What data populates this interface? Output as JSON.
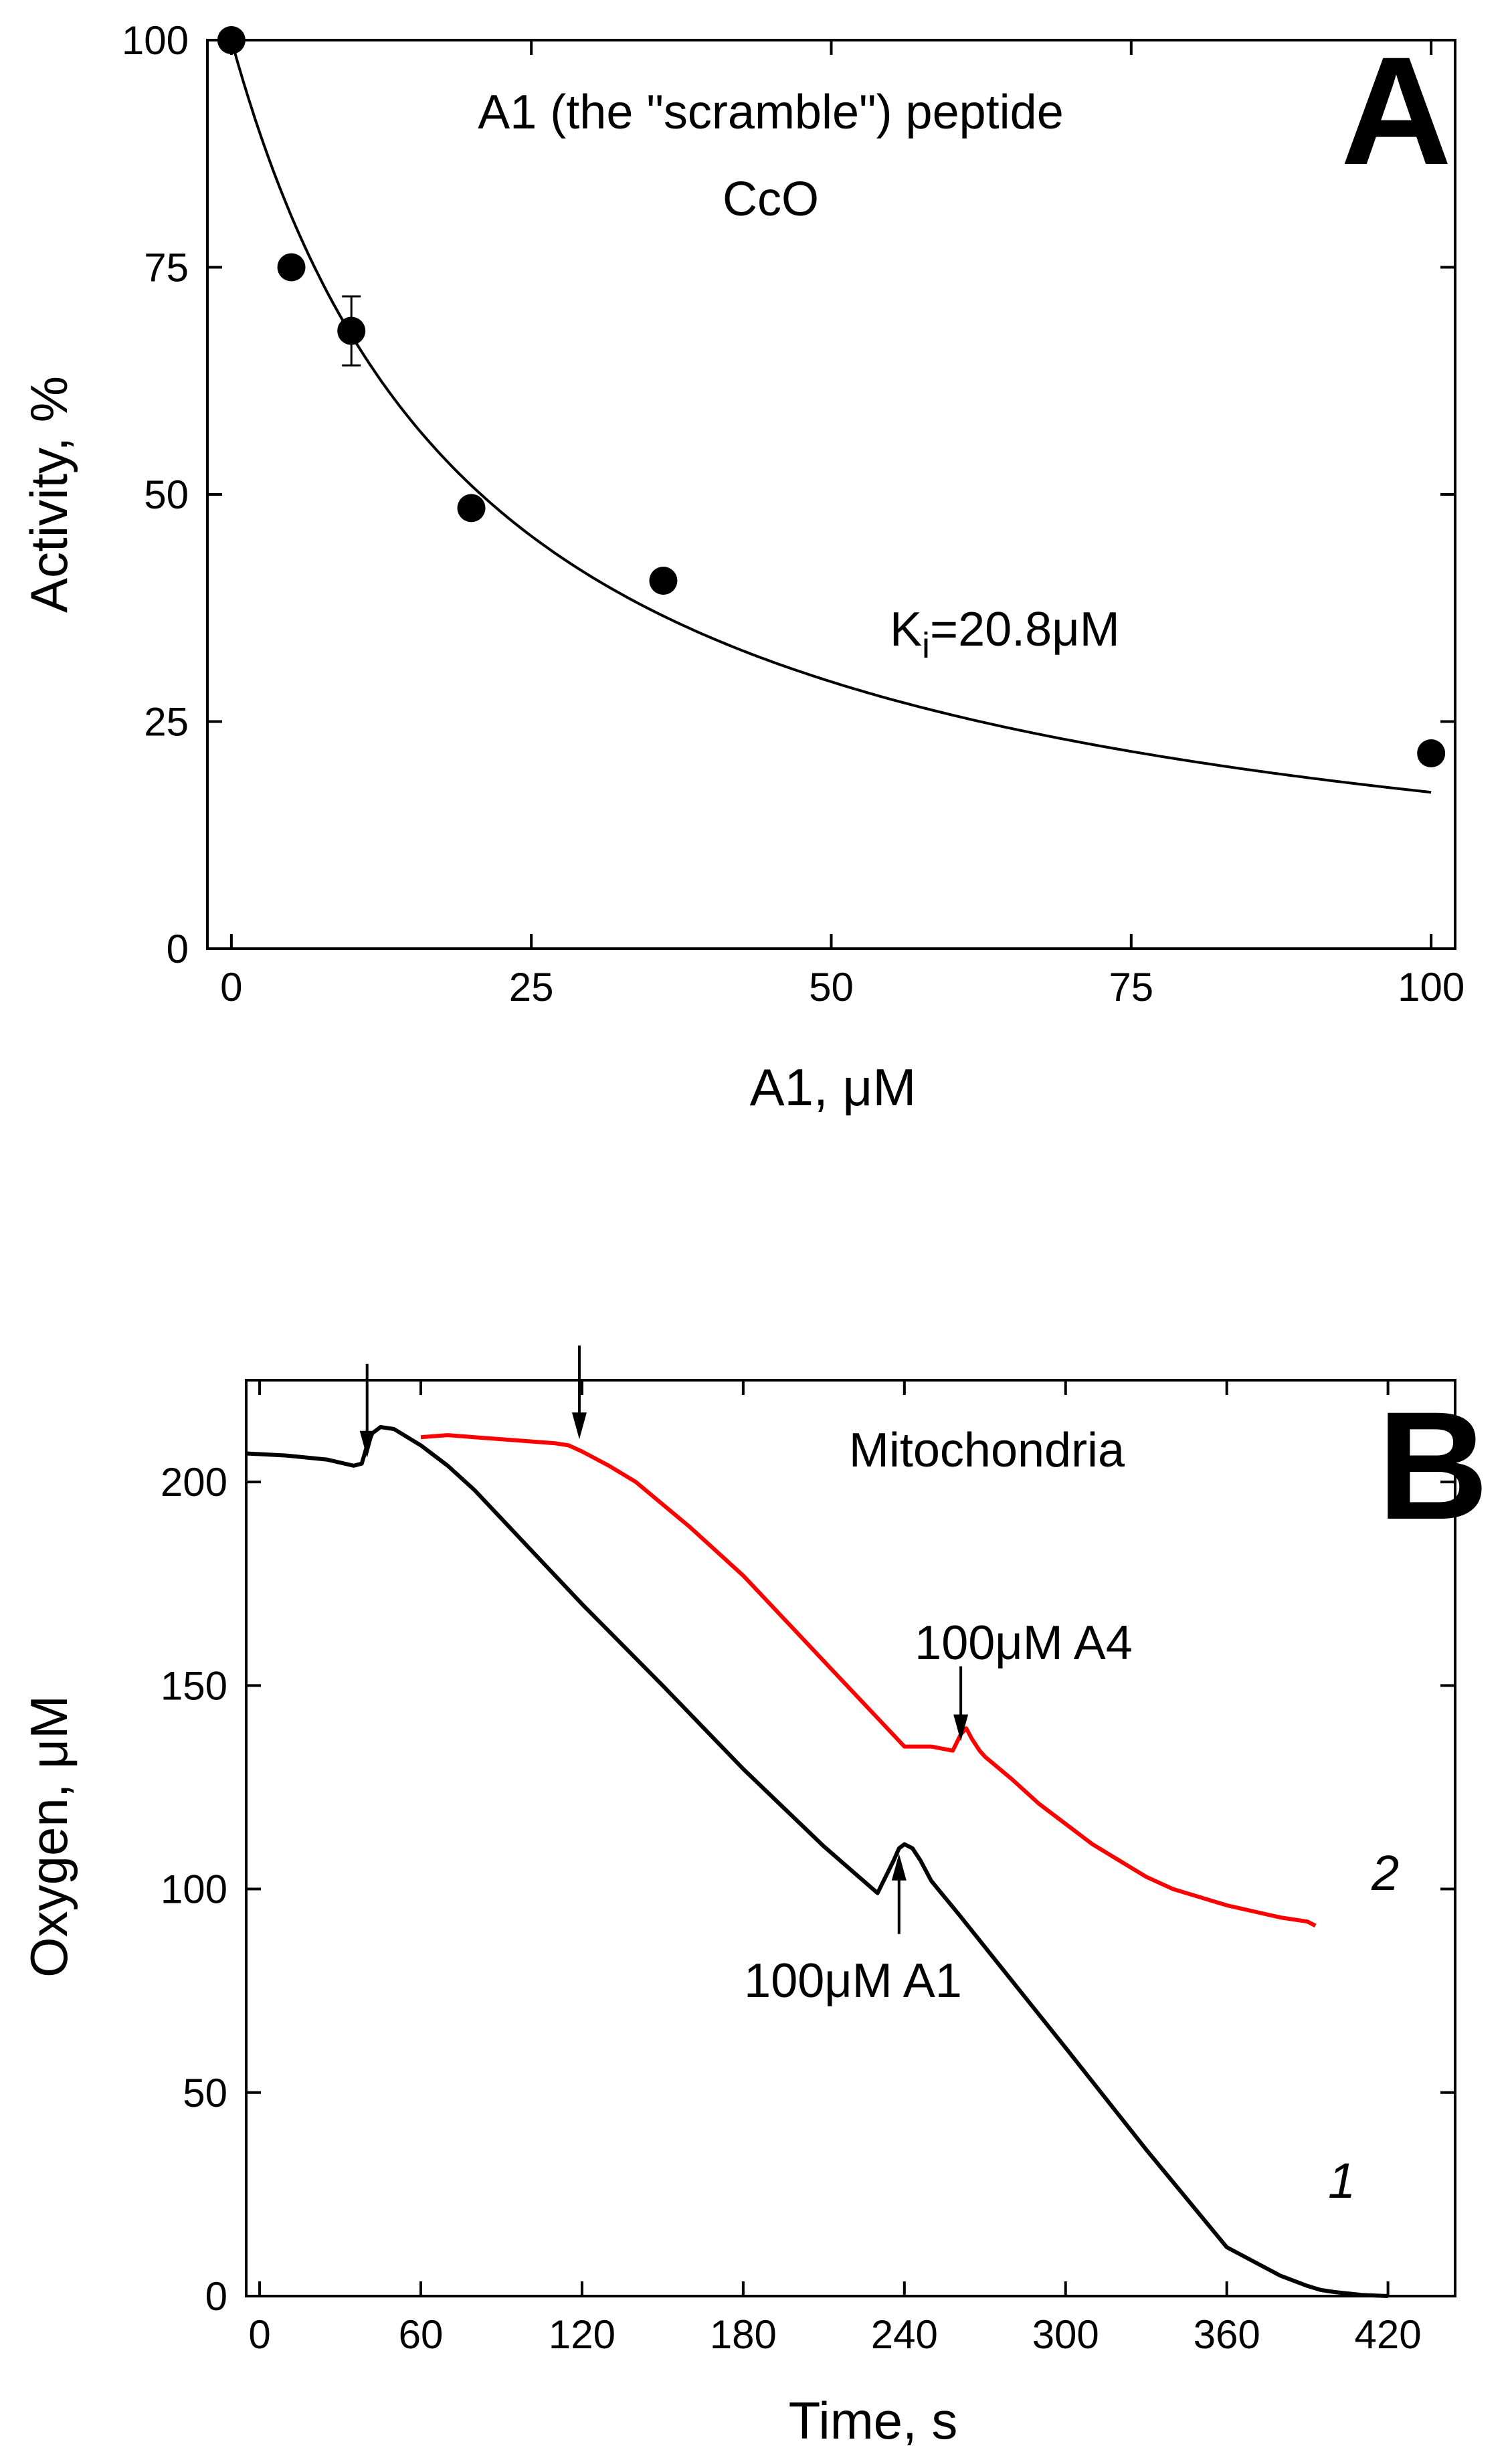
{
  "chart_data": [
    {
      "panel": "A",
      "type": "scatter",
      "panel_label": "A",
      "title": "A1 (the \"scramble\") peptide",
      "subtitle": "CcO",
      "xlabel": "A1, μM",
      "ylabel": "Activity, %",
      "xlim": [
        -2,
        102
      ],
      "ylim": [
        0,
        100
      ],
      "xticks": [
        0,
        25,
        50,
        75,
        100
      ],
      "yticks": [
        0,
        25,
        50,
        75,
        100
      ],
      "xtick_labels": [
        "0",
        "25",
        "50",
        "75",
        "100"
      ],
      "ytick_labels": [
        "0",
        "25",
        "50",
        "75",
        "100"
      ],
      "series": [
        {
          "name": "measured activity",
          "x": [
            0,
            5,
            10,
            20,
            36,
            100
          ],
          "y": [
            100,
            75,
            68,
            48.5,
            40.5,
            21.5
          ],
          "error": [
            0,
            0,
            3.8,
            0,
            0,
            0
          ]
        }
      ],
      "fit": {
        "name": "Ki fit",
        "label": "Ki=20.8μM",
        "label_main": "K",
        "label_sub": "i",
        "label_rest": "=20.8μM",
        "x_range": [
          0,
          100
        ]
      }
    },
    {
      "panel": "B",
      "type": "line",
      "panel_label": "B",
      "title": "Mitochondria",
      "xlabel": "Time, s",
      "ylabel": "Oxygen, μM",
      "xlim": [
        -5,
        445
      ],
      "ylim": [
        0,
        225
      ],
      "xticks": [
        0,
        60,
        120,
        180,
        240,
        300,
        360,
        420
      ],
      "yticks": [
        0,
        50,
        100,
        150,
        200
      ],
      "xtick_labels": [
        "0",
        "60",
        "120",
        "180",
        "240",
        "300",
        "360",
        "420"
      ],
      "ytick_labels": [
        "0",
        "50",
        "100",
        "150",
        "200"
      ],
      "series": [
        {
          "name": "1",
          "color": "#000000",
          "x": [
            -5,
            10,
            25,
            35,
            38,
            40,
            42,
            45,
            50,
            55,
            60,
            70,
            80,
            90,
            100,
            120,
            150,
            180,
            210,
            230,
            236,
            238,
            240,
            243,
            246,
            250,
            260,
            280,
            300,
            330,
            360,
            380,
            390,
            395,
            400,
            410,
            420
          ],
          "y": [
            207,
            206.5,
            205.5,
            204,
            204.5,
            209,
            212,
            213.5,
            213,
            211,
            209,
            204,
            198,
            191,
            184,
            170,
            150,
            129.5,
            110.5,
            99,
            107,
            110,
            111,
            110,
            107,
            102,
            94,
            77.5,
            61,
            36,
            12,
            5,
            2.5,
            1.5,
            1,
            0.3,
            0
          ]
        },
        {
          "name": "2",
          "color": "#ff0000",
          "x": [
            60,
            70,
            80,
            90,
            100,
            110,
            115,
            120,
            130,
            140,
            150,
            160,
            170,
            180,
            190,
            200,
            210,
            220,
            230,
            240,
            250,
            258,
            261,
            263,
            265,
            268,
            270,
            280,
            290,
            300,
            310,
            320,
            330,
            340,
            350,
            360,
            370,
            380,
            390,
            393
          ],
          "y": [
            211,
            211.5,
            211,
            210.5,
            210,
            209.5,
            209,
            207.5,
            204,
            200,
            194.5,
            189,
            183,
            177,
            170,
            163,
            156,
            149,
            142,
            135,
            135,
            134,
            138,
            139.5,
            137,
            134,
            132.5,
            127,
            121,
            116,
            111,
            107,
            103,
            100,
            98,
            96,
            94.5,
            93,
            92,
            91
          ]
        }
      ],
      "arrows": [
        {
          "text": "",
          "x": 40,
          "y_tip": 205
        },
        {
          "text": "",
          "x": 119,
          "y_tip": 209.5
        },
        {
          "text": "100μM A4",
          "x": 261,
          "y_tip": 135
        },
        {
          "text": "100μM A1",
          "x": 238,
          "y_tip": 110
        }
      ],
      "annotations": [
        {
          "text": "1"
        },
        {
          "text": "2"
        }
      ]
    }
  ]
}
